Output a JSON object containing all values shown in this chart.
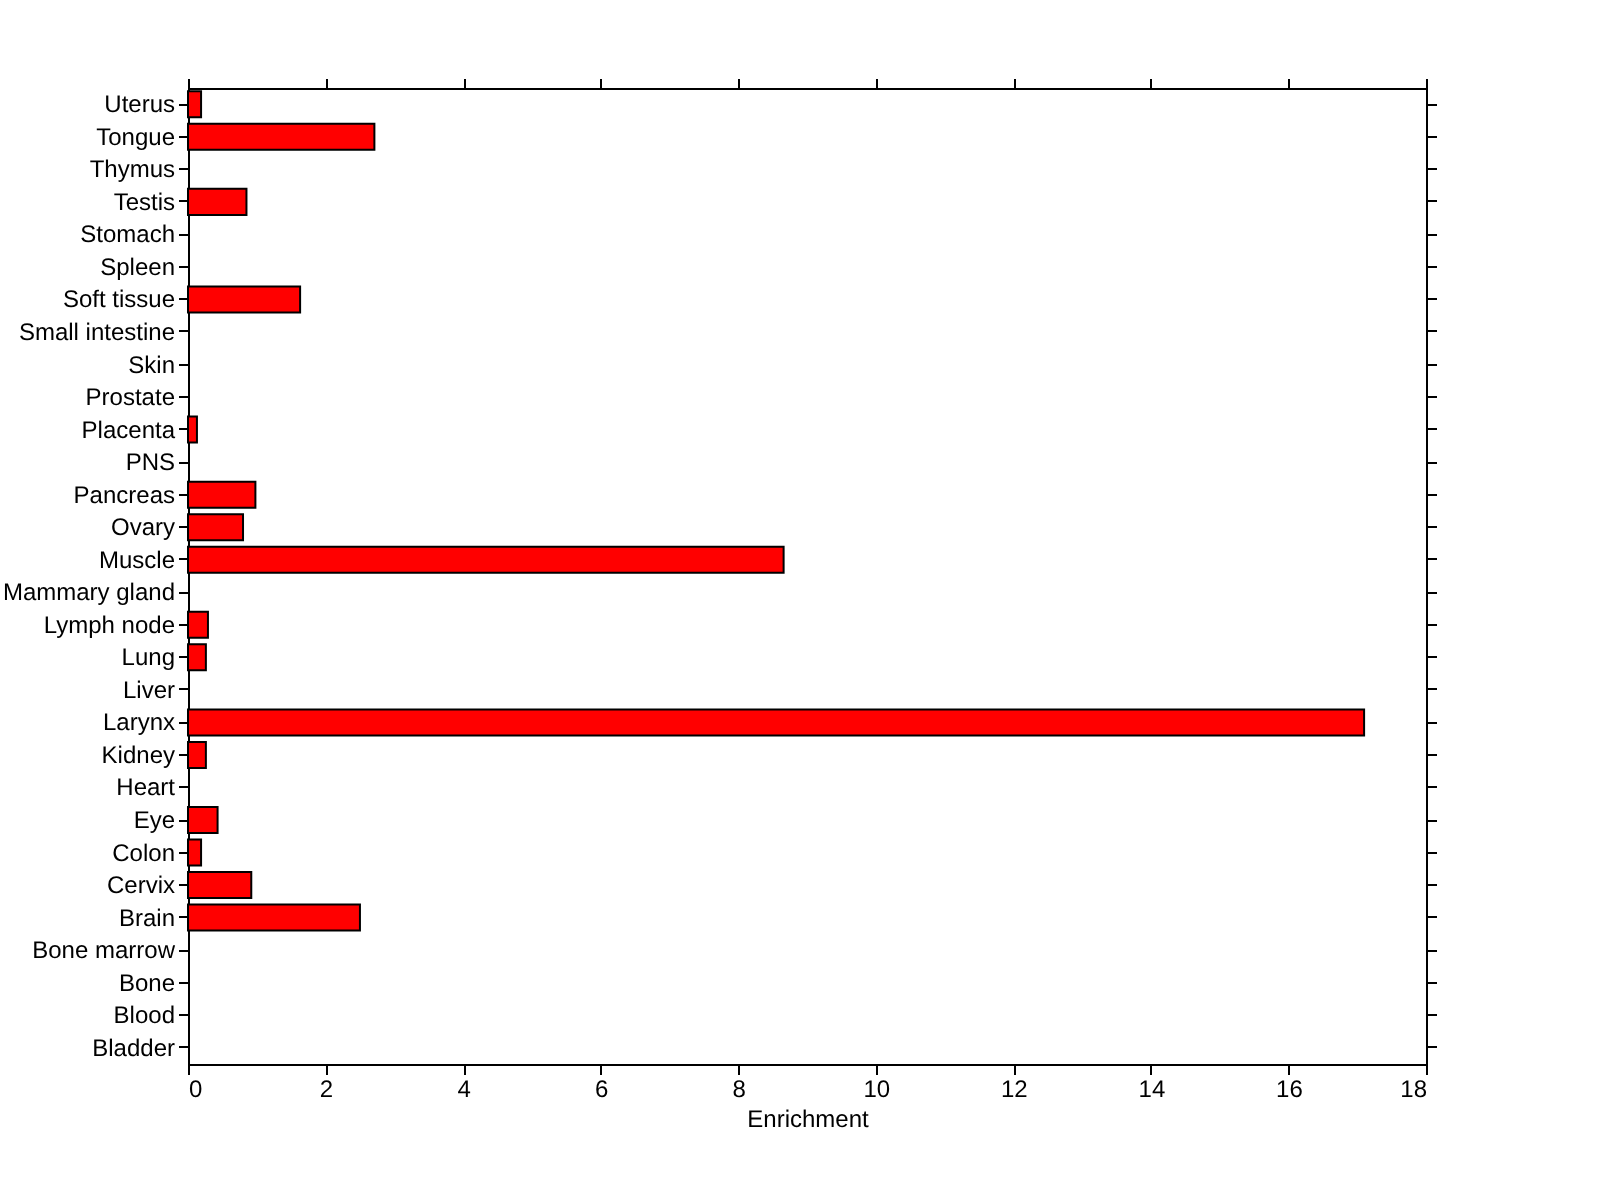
{
  "chart_data": {
    "type": "bar",
    "orientation": "horizontal",
    "xlabel": "Enrichment",
    "categories": [
      "Uterus",
      "Tongue",
      "Thymus",
      "Testis",
      "Stomach",
      "Spleen",
      "Soft tissue",
      "Small intestine",
      "Skin",
      "Prostate",
      "Placenta",
      "PNS",
      "Pancreas",
      "Ovary",
      "Muscle",
      "Mammary gland",
      "Lymph node",
      "Lung",
      "Liver",
      "Larynx",
      "Kidney",
      "Heart",
      "Eye",
      "Colon",
      "Cervix",
      "Brain",
      "Bone marrow",
      "Bone",
      "Blood",
      "Bladder"
    ],
    "values": [
      0.19,
      2.71,
      0,
      0.85,
      0,
      0,
      1.63,
      0,
      0,
      0,
      0.13,
      0,
      0.98,
      0.8,
      8.66,
      0,
      0.29,
      0.26,
      0,
      17.1,
      0.26,
      0,
      0.43,
      0.19,
      0.92,
      2.5,
      0,
      0,
      0,
      0
    ],
    "color": "#ff0000",
    "xlim": [
      0,
      18
    ],
    "xticks": [
      0,
      2,
      4,
      6,
      8,
      10,
      12,
      14,
      16,
      18
    ],
    "grid": false
  }
}
